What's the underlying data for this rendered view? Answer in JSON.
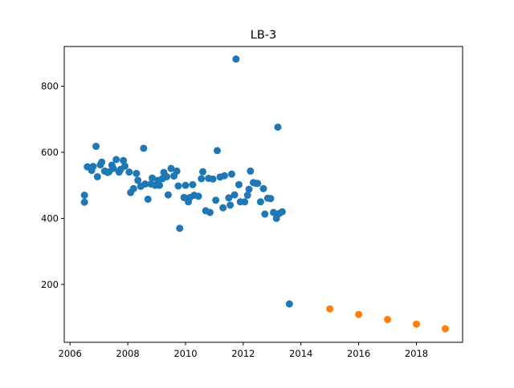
{
  "chart_data": {
    "type": "scatter",
    "title": "LB-3",
    "xlabel": "",
    "ylabel": "",
    "xlim": [
      2005.8,
      2019.6
    ],
    "ylim": [
      25,
      920
    ],
    "x_ticks": [
      2006,
      2008,
      2010,
      2012,
      2014,
      2016,
      2018
    ],
    "x_tick_labels": [
      "2006",
      "2008",
      "2010",
      "2012",
      "2014",
      "2016",
      "2018"
    ],
    "y_ticks": [
      200,
      400,
      600,
      800
    ],
    "y_tick_labels": [
      "200",
      "400",
      "600",
      "800"
    ],
    "grid": false,
    "legend": "none",
    "series": [
      {
        "color": "#1f77b4",
        "points": [
          [
            2006.5,
            470
          ],
          [
            2006.5,
            449
          ],
          [
            2006.6,
            556
          ],
          [
            2006.75,
            545
          ],
          [
            2006.8,
            557
          ],
          [
            2006.9,
            618
          ],
          [
            2006.95,
            526
          ],
          [
            2007.05,
            562
          ],
          [
            2007.1,
            570
          ],
          [
            2007.2,
            543
          ],
          [
            2007.3,
            539
          ],
          [
            2007.35,
            541
          ],
          [
            2007.45,
            561
          ],
          [
            2007.5,
            551
          ],
          [
            2007.6,
            578
          ],
          [
            2007.7,
            540
          ],
          [
            2007.75,
            548
          ],
          [
            2007.85,
            575
          ],
          [
            2007.9,
            558
          ],
          [
            2008.05,
            540
          ],
          [
            2008.1,
            478
          ],
          [
            2008.2,
            490
          ],
          [
            2008.3,
            536
          ],
          [
            2008.35,
            515
          ],
          [
            2008.45,
            497
          ],
          [
            2008.55,
            612
          ],
          [
            2008.6,
            504
          ],
          [
            2008.7,
            458
          ],
          [
            2008.8,
            504
          ],
          [
            2008.85,
            522
          ],
          [
            2008.95,
            500
          ],
          [
            2009.05,
            515
          ],
          [
            2009.1,
            500
          ],
          [
            2009.2,
            520
          ],
          [
            2009.25,
            539
          ],
          [
            2009.35,
            526
          ],
          [
            2009.4,
            471
          ],
          [
            2009.5,
            551
          ],
          [
            2009.6,
            528
          ],
          [
            2009.7,
            543
          ],
          [
            2009.75,
            498
          ],
          [
            2009.8,
            370
          ],
          [
            2009.95,
            463
          ],
          [
            2010.0,
            500
          ],
          [
            2010.1,
            450
          ],
          [
            2010.15,
            463
          ],
          [
            2010.25,
            502
          ],
          [
            2010.3,
            470
          ],
          [
            2010.45,
            467
          ],
          [
            2010.55,
            520
          ],
          [
            2010.6,
            541
          ],
          [
            2010.7,
            423
          ],
          [
            2010.8,
            521
          ],
          [
            2010.85,
            418
          ],
          [
            2010.95,
            519
          ],
          [
            2011.05,
            455
          ],
          [
            2011.1,
            605
          ],
          [
            2011.2,
            525
          ],
          [
            2011.3,
            432
          ],
          [
            2011.35,
            529
          ],
          [
            2011.5,
            462
          ],
          [
            2011.55,
            440
          ],
          [
            2011.6,
            534
          ],
          [
            2011.7,
            471
          ],
          [
            2011.75,
            882
          ],
          [
            2011.85,
            502
          ],
          [
            2011.9,
            450
          ],
          [
            2012.05,
            450
          ],
          [
            2012.15,
            470
          ],
          [
            2012.2,
            488
          ],
          [
            2012.25,
            543
          ],
          [
            2012.35,
            508
          ],
          [
            2012.45,
            506
          ],
          [
            2012.5,
            506
          ],
          [
            2012.6,
            450
          ],
          [
            2012.7,
            490
          ],
          [
            2012.75,
            413
          ],
          [
            2012.85,
            461
          ],
          [
            2012.95,
            460
          ],
          [
            2013.05,
            418
          ],
          [
            2013.15,
            400
          ],
          [
            2013.2,
            676
          ],
          [
            2013.25,
            415
          ],
          [
            2013.35,
            420
          ],
          [
            2013.6,
            141
          ]
        ]
      },
      {
        "color": "#ff7f0e",
        "points": [
          [
            2015.0,
            126
          ],
          [
            2016.0,
            109
          ],
          [
            2017.0,
            94
          ],
          [
            2018.0,
            80
          ],
          [
            2019.0,
            66
          ]
        ]
      }
    ]
  }
}
